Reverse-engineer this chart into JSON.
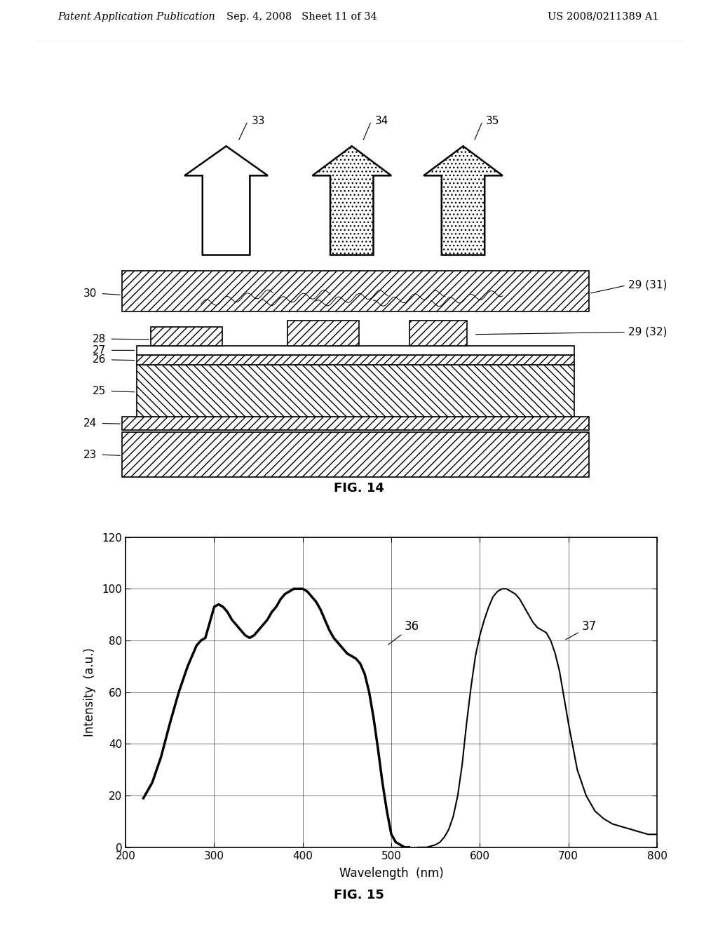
{
  "header_left": "Patent Application Publication",
  "header_mid": "Sep. 4, 2008   Sheet 11 of 34",
  "header_right": "US 2008/0211389 A1",
  "fig14_label": "FIG. 14",
  "fig15_label": "FIG. 15",
  "graph_xlabel": "Wavelength  (nm)",
  "graph_ylabel": "Intensity  (a.u.)",
  "graph_xlim": [
    200,
    800
  ],
  "graph_ylim": [
    0,
    120
  ],
  "graph_xticks": [
    200,
    300,
    400,
    500,
    600,
    700,
    800
  ],
  "graph_yticks": [
    0,
    20,
    40,
    60,
    80,
    100,
    120
  ],
  "bg_color": "#ffffff",
  "curve36_x": [
    220,
    230,
    240,
    250,
    260,
    270,
    275,
    280,
    285,
    290,
    295,
    300,
    305,
    310,
    315,
    320,
    325,
    330,
    335,
    340,
    345,
    350,
    355,
    360,
    365,
    370,
    375,
    380,
    385,
    390,
    395,
    400,
    405,
    410,
    415,
    420,
    425,
    430,
    435,
    440,
    445,
    450,
    455,
    460,
    465,
    470,
    475,
    480,
    485,
    490,
    495,
    500,
    505,
    510,
    515,
    520
  ],
  "curve36_y": [
    19,
    25,
    35,
    48,
    60,
    70,
    74,
    78,
    80,
    81,
    87,
    93,
    94,
    93,
    91,
    88,
    86,
    84,
    82,
    81,
    82,
    84,
    86,
    88,
    91,
    93,
    96,
    98,
    99,
    100,
    100,
    100,
    99,
    97,
    95,
    92,
    88,
    84,
    81,
    79,
    77,
    75,
    74,
    73,
    71,
    67,
    60,
    50,
    38,
    25,
    14,
    5,
    2,
    1,
    0,
    0
  ],
  "curve37_x": [
    530,
    540,
    550,
    555,
    560,
    565,
    570,
    575,
    580,
    585,
    590,
    595,
    600,
    605,
    610,
    615,
    620,
    625,
    630,
    635,
    640,
    645,
    650,
    655,
    660,
    665,
    670,
    675,
    680,
    685,
    690,
    695,
    700,
    710,
    720,
    730,
    740,
    750,
    760,
    770,
    780,
    790,
    800
  ],
  "curve37_y": [
    0,
    0,
    1,
    2,
    4,
    7,
    12,
    20,
    32,
    48,
    62,
    74,
    82,
    88,
    93,
    97,
    99,
    100,
    100,
    99,
    98,
    96,
    93,
    90,
    87,
    85,
    84,
    83,
    80,
    75,
    68,
    58,
    48,
    30,
    20,
    14,
    11,
    9,
    8,
    7,
    6,
    5,
    5
  ]
}
